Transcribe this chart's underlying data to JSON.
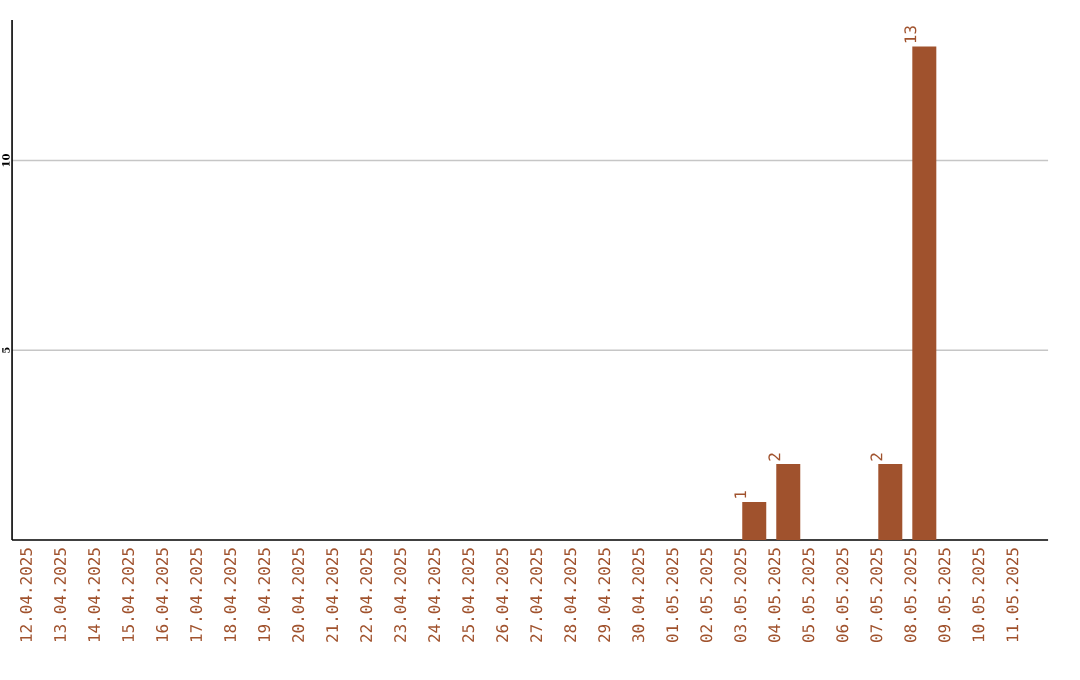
{
  "chart_data": {
    "type": "bar",
    "categories": [
      "12.04.2025",
      "13.04.2025",
      "14.04.2025",
      "15.04.2025",
      "16.04.2025",
      "17.04.2025",
      "18.04.2025",
      "19.04.2025",
      "20.04.2025",
      "21.04.2025",
      "22.04.2025",
      "23.04.2025",
      "24.04.2025",
      "25.04.2025",
      "26.04.2025",
      "27.04.2025",
      "28.04.2025",
      "29.04.2025",
      "30.04.2025",
      "01.05.2025",
      "02.05.2025",
      "03.05.2025",
      "04.05.2025",
      "05.05.2025",
      "06.05.2025",
      "07.05.2025",
      "08.05.2025",
      "09.05.2025",
      "10.05.2025",
      "11.05.2025"
    ],
    "values": [
      0,
      0,
      0,
      0,
      0,
      0,
      0,
      0,
      0,
      0,
      0,
      0,
      0,
      0,
      0,
      0,
      0,
      0,
      0,
      0,
      0,
      1,
      2,
      0,
      0,
      2,
      13,
      0,
      0,
      0
    ],
    "value_labels": [
      null,
      null,
      null,
      null,
      null,
      null,
      null,
      null,
      null,
      null,
      null,
      null,
      null,
      null,
      null,
      null,
      null,
      null,
      null,
      null,
      null,
      "1",
      "2",
      null,
      null,
      "2",
      "13",
      null,
      null,
      null
    ],
    "color": "#a0522d",
    "ylim": [
      0,
      13.7
    ],
    "yticks": [
      5,
      10
    ],
    "grid": "y"
  }
}
